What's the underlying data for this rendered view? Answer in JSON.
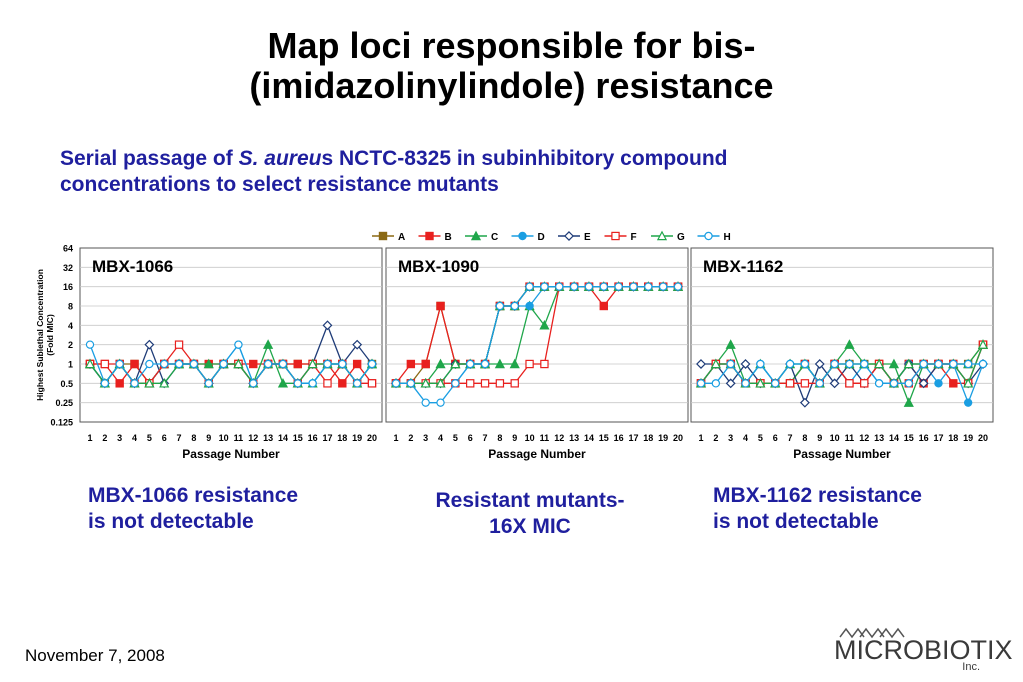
{
  "slide": {
    "title_line1": "Map loci responsible for bis-",
    "title_line2": "(imidazolinylindole) resistance",
    "subtitle_part1": "Serial passage of ",
    "subtitle_italic": "S. aureu",
    "subtitle_part2": "s NCTC-8325 in subinhibitory compound",
    "subtitle_line2": "concentrations to select resistance mutants",
    "captions": {
      "c1_line1": "MBX-1066 resistance",
      "c1_line2": "is not detectable",
      "c2_line1": "Resistant mutants-",
      "c2_line2": "16X MIC",
      "c3_line1": "MBX-1162 resistance",
      "c3_line2": "is not detectable"
    },
    "footer_date": "November 7, 2008",
    "logo_text": "MICROBIOTIX",
    "logo_sub": "Inc."
  },
  "chart_data": {
    "type": "line",
    "y_scale": "log2",
    "ylim": [
      0.125,
      64
    ],
    "yticks": [
      "0.125",
      "0.25",
      "0.5",
      "1",
      "2",
      "4",
      "8",
      "16",
      "32",
      "64"
    ],
    "ylabel_line1": "Highest Sublethal Concentration",
    "ylabel_line2": "(Fold MIC)",
    "xlabel": "Passage Number",
    "x": [
      1,
      2,
      3,
      4,
      5,
      6,
      7,
      8,
      9,
      10,
      11,
      12,
      13,
      14,
      15,
      16,
      17,
      18,
      19,
      20
    ],
    "legend_position": "top",
    "legend": [
      {
        "name": "A",
        "color": "#8b6914",
        "marker": "square"
      },
      {
        "name": "B",
        "color": "#e8201e",
        "marker": "square"
      },
      {
        "name": "C",
        "color": "#1fa64a",
        "marker": "triangle"
      },
      {
        "name": "D",
        "color": "#1a9ee2",
        "marker": "circle"
      },
      {
        "name": "E",
        "color": "#1f3c78",
        "marker": "diamond"
      },
      {
        "name": "F",
        "color": "#e8201e",
        "marker": "square-open"
      },
      {
        "name": "G",
        "color": "#1fa64a",
        "marker": "triangle-open"
      },
      {
        "name": "H",
        "color": "#1a9ee2",
        "marker": "circle-open"
      }
    ],
    "panels": [
      {
        "title": "MBX-1066",
        "series": [
          {
            "name": "A",
            "values": [
              1,
              0.5,
              1,
              1,
              0.5,
              1,
              1,
              1,
              0.5,
              1,
              1,
              0.5,
              1,
              1,
              1,
              1,
              1,
              1,
              0.5,
              1
            ]
          },
          {
            "name": "B",
            "values": [
              1,
              1,
              0.5,
              1,
              0.5,
              1,
              1,
              1,
              1,
              1,
              1,
              1,
              1,
              1,
              1,
              1,
              1,
              0.5,
              1,
              0.5
            ]
          },
          {
            "name": "C",
            "values": [
              1,
              0.5,
              1,
              0.5,
              0.5,
              1,
              1,
              1,
              1,
              1,
              1,
              0.5,
              2,
              0.5,
              0.5,
              0.5,
              1,
              1,
              0.5,
              1
            ]
          },
          {
            "name": "D",
            "values": [
              1,
              0.5,
              1,
              0.5,
              0.5,
              1,
              1,
              1,
              0.5,
              1,
              2,
              0.5,
              1,
              1,
              0.5,
              0.5,
              1,
              1,
              0.5,
              1
            ]
          },
          {
            "name": "E",
            "values": [
              1,
              0.5,
              1,
              0.5,
              2,
              0.5,
              1,
              1,
              0.5,
              1,
              1,
              0.5,
              1,
              1,
              0.5,
              1,
              4,
              1,
              2,
              1
            ]
          },
          {
            "name": "F",
            "values": [
              1,
              1,
              1,
              0.5,
              0.5,
              1,
              2,
              1,
              0.5,
              1,
              1,
              0.5,
              1,
              1,
              0.5,
              1,
              0.5,
              1,
              0.5,
              0.5
            ]
          },
          {
            "name": "G",
            "values": [
              1,
              0.5,
              1,
              0.5,
              0.5,
              0.5,
              1,
              1,
              0.5,
              1,
              1,
              0.5,
              1,
              1,
              0.5,
              1,
              1,
              1,
              0.5,
              1
            ]
          },
          {
            "name": "H",
            "values": [
              2,
              0.5,
              1,
              0.5,
              1,
              1,
              1,
              1,
              0.5,
              1,
              2,
              0.5,
              1,
              1,
              0.5,
              0.5,
              1,
              1,
              0.5,
              1
            ]
          }
        ]
      },
      {
        "title": "MBX-1090",
        "series": [
          {
            "name": "A",
            "values": [
              0.5,
              0.5,
              1,
              8,
              1,
              1,
              1,
              8,
              8,
              16,
              16,
              16,
              16,
              16,
              16,
              16,
              16,
              16,
              16,
              16
            ]
          },
          {
            "name": "B",
            "values": [
              0.5,
              1,
              1,
              8,
              1,
              1,
              1,
              8,
              8,
              16,
              16,
              16,
              16,
              16,
              8,
              16,
              16,
              16,
              16,
              16
            ]
          },
          {
            "name": "C",
            "values": [
              0.5,
              0.5,
              0.5,
              1,
              1,
              1,
              1,
              1,
              1,
              8,
              4,
              16,
              16,
              16,
              16,
              16,
              16,
              16,
              16,
              16
            ]
          },
          {
            "name": "D",
            "values": [
              0.5,
              0.5,
              0.5,
              0.5,
              0.5,
              1,
              1,
              8,
              8,
              8,
              16,
              16,
              16,
              16,
              16,
              16,
              16,
              16,
              16,
              16
            ]
          },
          {
            "name": "E",
            "values": [
              0.5,
              0.5,
              0.5,
              0.5,
              1,
              1,
              1,
              8,
              8,
              16,
              16,
              16,
              16,
              16,
              16,
              16,
              16,
              16,
              16,
              16
            ]
          },
          {
            "name": "F",
            "values": [
              0.5,
              0.5,
              0.5,
              0.5,
              0.5,
              0.5,
              0.5,
              0.5,
              0.5,
              1,
              1,
              16,
              16,
              16,
              16,
              16,
              16,
              16,
              16,
              16
            ]
          },
          {
            "name": "G",
            "values": [
              0.5,
              0.5,
              0.5,
              0.5,
              1,
              1,
              1,
              8,
              8,
              16,
              16,
              16,
              16,
              16,
              16,
              16,
              16,
              16,
              16,
              16
            ]
          },
          {
            "name": "H",
            "values": [
              0.5,
              0.5,
              0.25,
              0.25,
              0.5,
              1,
              1,
              8,
              8,
              16,
              16,
              16,
              16,
              16,
              16,
              16,
              16,
              16,
              16,
              16
            ]
          }
        ]
      },
      {
        "title": "MBX-1162",
        "series": [
          {
            "name": "A",
            "values": [
              0.5,
              1,
              1,
              0.5,
              0.5,
              0.5,
              0.5,
              1,
              0.5,
              1,
              1,
              1,
              1,
              0.5,
              1,
              1,
              1,
              1,
              1,
              2
            ]
          },
          {
            "name": "B",
            "values": [
              0.5,
              1,
              1,
              0.5,
              0.5,
              0.5,
              0.5,
              1,
              0.5,
              1,
              0.5,
              0.5,
              1,
              0.5,
              1,
              0.5,
              1,
              0.5,
              0.5,
              2
            ]
          },
          {
            "name": "C",
            "values": [
              0.5,
              1,
              2,
              0.5,
              1,
              0.5,
              0.5,
              1,
              0.5,
              1,
              2,
              1,
              1,
              1,
              0.25,
              1,
              1,
              1,
              1,
              2
            ]
          },
          {
            "name": "D",
            "values": [
              0.5,
              1,
              1,
              0.5,
              1,
              0.5,
              1,
              1,
              0.5,
              1,
              0.5,
              1,
              0.5,
              0.5,
              1,
              1,
              0.5,
              1,
              0.25,
              1
            ]
          },
          {
            "name": "E",
            "values": [
              1,
              1,
              0.5,
              1,
              0.5,
              0.5,
              1,
              0.25,
              1,
              0.5,
              1,
              0.5,
              1,
              0.5,
              1,
              0.5,
              1,
              1,
              0.5,
              1
            ]
          },
          {
            "name": "F",
            "values": [
              0.5,
              1,
              1,
              0.5,
              0.5,
              0.5,
              0.5,
              0.5,
              0.5,
              1,
              0.5,
              0.5,
              1,
              0.5,
              0.5,
              1,
              1,
              1,
              0.5,
              2
            ]
          },
          {
            "name": "G",
            "values": [
              0.5,
              1,
              1,
              0.5,
              0.5,
              0.5,
              1,
              1,
              0.5,
              1,
              1,
              1,
              1,
              0.5,
              1,
              1,
              1,
              1,
              0.5,
              2
            ]
          },
          {
            "name": "H",
            "values": [
              0.5,
              0.5,
              1,
              0.5,
              1,
              0.5,
              1,
              1,
              0.5,
              1,
              1,
              1,
              0.5,
              0.5,
              0.5,
              1,
              1,
              1,
              1,
              1
            ]
          }
        ]
      }
    ]
  }
}
